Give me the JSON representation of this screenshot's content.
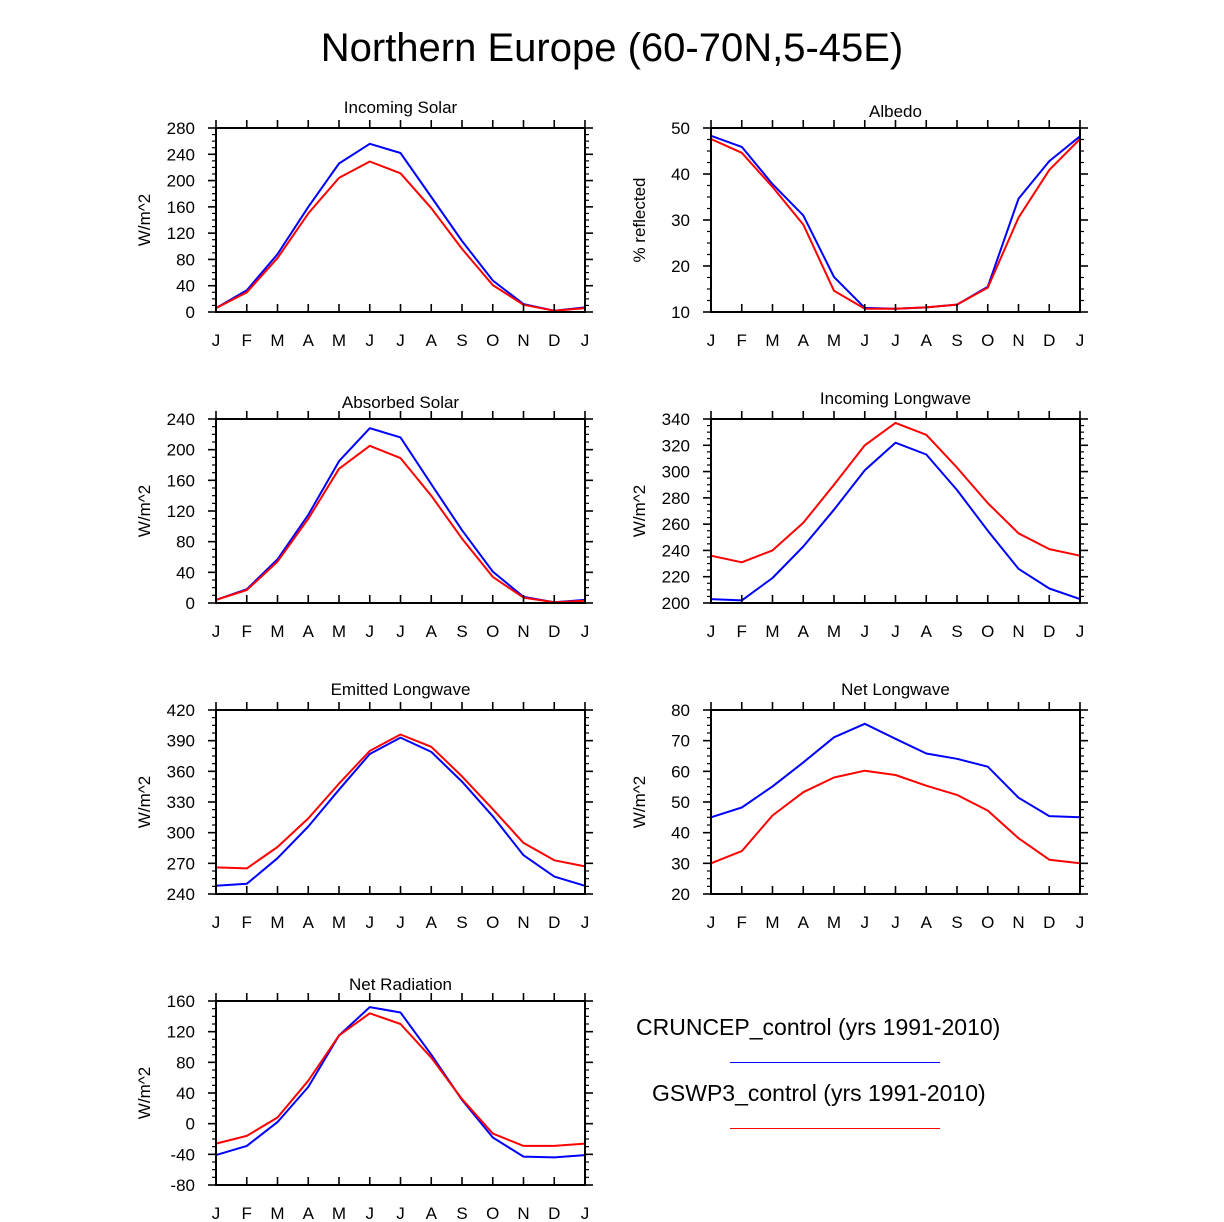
{
  "title": "Northern Europe (60-70N,5-45E)",
  "colors": {
    "series_1": "#0000ff",
    "series_2": "#ff0000",
    "axis": "#000000"
  },
  "legend": {
    "series_1_label": "CRUNCEP_control (yrs 1991-2010)",
    "series_2_label": "GSWP3_control (yrs 1991-2010)"
  },
  "chart_data": [
    {
      "type": "line",
      "title": "Incoming Solar",
      "ylabel": "W/m^2",
      "xlabel": "",
      "x": [
        "J",
        "F",
        "M",
        "A",
        "M",
        "J",
        "J",
        "A",
        "S",
        "O",
        "N",
        "D",
        "J"
      ],
      "ylim": [
        0,
        280
      ],
      "yticks": [
        0,
        40,
        80,
        120,
        160,
        200,
        240,
        280
      ],
      "series": [
        {
          "name": "CRUNCEP_control (yrs 1991-2010)",
          "color": "#0000ff",
          "values": [
            6,
            33,
            88,
            160,
            226,
            256,
            242,
            175,
            108,
            48,
            12,
            2,
            7
          ]
        },
        {
          "name": "GSWP3_control (yrs 1991-2010)",
          "color": "#ff0000",
          "values": [
            6,
            30,
            82,
            150,
            204,
            229,
            211,
            158,
            96,
            41,
            11,
            2,
            6
          ]
        }
      ]
    },
    {
      "type": "line",
      "title": "Albedo",
      "ylabel": "% reflected",
      "xlabel": "",
      "x": [
        "J",
        "F",
        "M",
        "A",
        "M",
        "J",
        "J",
        "A",
        "S",
        "O",
        "N",
        "D",
        "J"
      ],
      "ylim": [
        10,
        50
      ],
      "yticks": [
        10,
        20,
        30,
        40,
        50
      ],
      "series": [
        {
          "name": "CRUNCEP_control (yrs 1991-2010)",
          "color": "#0000ff",
          "values": [
            48.3,
            45.9,
            37.8,
            31.0,
            17.6,
            10.9,
            10.7,
            11.0,
            11.6,
            15.5,
            34.6,
            42.8,
            48.2
          ]
        },
        {
          "name": "GSWP3_control (yrs 1991-2010)",
          "color": "#ff0000",
          "values": [
            47.6,
            44.6,
            37.2,
            29.0,
            14.6,
            10.7,
            10.7,
            11.0,
            11.6,
            15.3,
            30.5,
            40.9,
            47.6
          ]
        }
      ]
    },
    {
      "type": "line",
      "title": "Absorbed Solar",
      "ylabel": "W/m^2",
      "xlabel": "",
      "x": [
        "J",
        "F",
        "M",
        "A",
        "M",
        "J",
        "J",
        "A",
        "S",
        "O",
        "N",
        "D",
        "J"
      ],
      "ylim": [
        0,
        240
      ],
      "yticks": [
        0,
        40,
        80,
        120,
        160,
        200,
        240
      ],
      "series": [
        {
          "name": "CRUNCEP_control (yrs 1991-2010)",
          "color": "#0000ff",
          "values": [
            4,
            18,
            57,
            115,
            185,
            228,
            216,
            155,
            95,
            41,
            8,
            1,
            4
          ]
        },
        {
          "name": "GSWP3_control (yrs 1991-2010)",
          "color": "#ff0000",
          "values": [
            4,
            17,
            54,
            110,
            175,
            205,
            189,
            140,
            84,
            34,
            7,
            1,
            3
          ]
        }
      ]
    },
    {
      "type": "line",
      "title": "Incoming Longwave",
      "ylabel": "W/m^2",
      "xlabel": "",
      "x": [
        "J",
        "F",
        "M",
        "A",
        "M",
        "J",
        "J",
        "A",
        "S",
        "O",
        "N",
        "D",
        "J"
      ],
      "ylim": [
        200,
        340
      ],
      "yticks": [
        200,
        220,
        240,
        260,
        280,
        300,
        320,
        340
      ],
      "series": [
        {
          "name": "CRUNCEP_control (yrs 1991-2010)",
          "color": "#0000ff",
          "values": [
            203,
            202,
            219,
            243,
            271,
            301,
            322,
            313,
            286,
            255,
            226,
            211,
            203
          ]
        },
        {
          "name": "GSWP3_control (yrs 1991-2010)",
          "color": "#ff0000",
          "values": [
            236,
            231,
            240,
            261,
            290,
            320,
            337,
            328,
            303,
            276,
            253,
            241,
            236
          ]
        }
      ]
    },
    {
      "type": "line",
      "title": "Emitted Longwave",
      "ylabel": "W/m^2",
      "xlabel": "",
      "x": [
        "J",
        "F",
        "M",
        "A",
        "M",
        "J",
        "J",
        "A",
        "S",
        "O",
        "N",
        "D",
        "J"
      ],
      "ylim": [
        240,
        420
      ],
      "yticks": [
        240,
        270,
        300,
        330,
        360,
        390,
        420
      ],
      "series": [
        {
          "name": "CRUNCEP_control (yrs 1991-2010)",
          "color": "#0000ff",
          "values": [
            248,
            250,
            275,
            306,
            342,
            377,
            393,
            379,
            350,
            316,
            278,
            257,
            248
          ]
        },
        {
          "name": "GSWP3_control (yrs 1991-2010)",
          "color": "#ff0000",
          "values": [
            266,
            265,
            286,
            314,
            348,
            380,
            396,
            384,
            355,
            323,
            290,
            273,
            267
          ]
        }
      ]
    },
    {
      "type": "line",
      "title": "Net Longwave",
      "ylabel": "W/m^2",
      "xlabel": "",
      "x": [
        "J",
        "F",
        "M",
        "A",
        "M",
        "J",
        "J",
        "A",
        "S",
        "O",
        "N",
        "D",
        "J"
      ],
      "ylim": [
        20,
        80
      ],
      "yticks": [
        20,
        30,
        40,
        50,
        60,
        70,
        80
      ],
      "series": [
        {
          "name": "CRUNCEP_control (yrs 1991-2010)",
          "color": "#0000ff",
          "values": [
            45,
            48.2,
            55.1,
            62.9,
            71.1,
            75.5,
            70.6,
            65.8,
            64.1,
            61.5,
            51.4,
            45.4,
            45
          ]
        },
        {
          "name": "GSWP3_control (yrs 1991-2010)",
          "color": "#ff0000",
          "values": [
            30,
            34.0,
            45.6,
            53.2,
            58.0,
            60.2,
            58.8,
            55.3,
            52.3,
            47.2,
            38.2,
            31.2,
            30
          ]
        }
      ]
    },
    {
      "type": "line",
      "title": "Net Radiation",
      "ylabel": "W/m^2",
      "xlabel": "",
      "x": [
        "J",
        "F",
        "M",
        "A",
        "M",
        "J",
        "J",
        "A",
        "S",
        "O",
        "N",
        "D",
        "J"
      ],
      "ylim": [
        -80,
        160
      ],
      "yticks": [
        -80,
        -40,
        0,
        40,
        80,
        120,
        160
      ],
      "series": [
        {
          "name": "CRUNCEP_control (yrs 1991-2010)",
          "color": "#0000ff",
          "values": [
            -41,
            -29,
            2,
            48,
            115,
            152,
            145,
            90,
            31,
            -18,
            -43,
            -44,
            -41
          ]
        },
        {
          "name": "GSWP3_control (yrs 1991-2010)",
          "color": "#ff0000",
          "values": [
            -26,
            -16,
            8,
            56,
            115,
            144,
            130,
            86,
            32,
            -13,
            -29,
            -29,
            -26
          ]
        }
      ]
    }
  ]
}
